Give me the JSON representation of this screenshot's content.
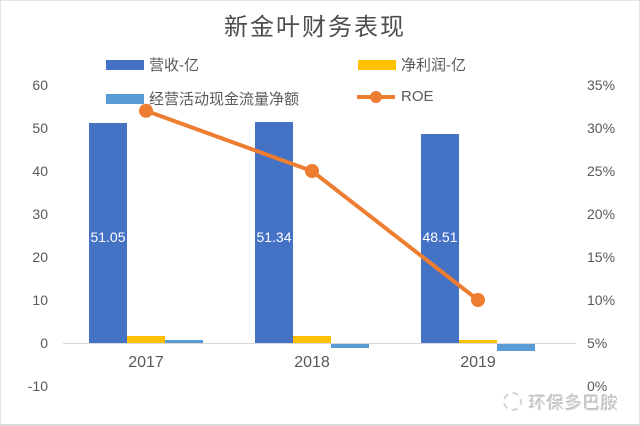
{
  "watermark": {
    "text": "环保多巴胺"
  },
  "chart_data": {
    "type": "combo-bar-line",
    "title": "新金叶财务表现",
    "categories": [
      "2017",
      "2018",
      "2019"
    ],
    "series": [
      {
        "name": "营收-亿",
        "type": "bar",
        "axis": "left",
        "color": "#4472C4",
        "values": [
          51.05,
          51.34,
          48.51
        ],
        "data_labels": [
          "51.05",
          "51.34",
          "48.51"
        ]
      },
      {
        "name": "净利润-亿",
        "type": "bar",
        "axis": "left",
        "color": "#FFC000",
        "values": [
          1.6,
          1.6,
          0.8
        ]
      },
      {
        "name": "经营活动现金流量净额",
        "type": "bar",
        "axis": "left",
        "color": "#5B9BD5",
        "values": [
          0.7,
          -0.9,
          -1.6
        ]
      },
      {
        "name": "ROE",
        "type": "line",
        "axis": "right",
        "color": "#ED7D31",
        "values_percent": [
          32,
          25,
          10
        ]
      }
    ],
    "left_axis": {
      "min": -10,
      "max": 60,
      "step": 10,
      "tick_labels": [
        "60",
        "50",
        "40",
        "30",
        "20",
        "10",
        "0",
        "-10"
      ]
    },
    "right_axis": {
      "min": 0,
      "max": 35,
      "step": 5,
      "unit": "%",
      "tick_labels": [
        "35%",
        "30%",
        "25%",
        "20%",
        "15%",
        "10%",
        "5%",
        "0%"
      ]
    },
    "legend_position": "top",
    "gridlines": "zero-line-only"
  }
}
